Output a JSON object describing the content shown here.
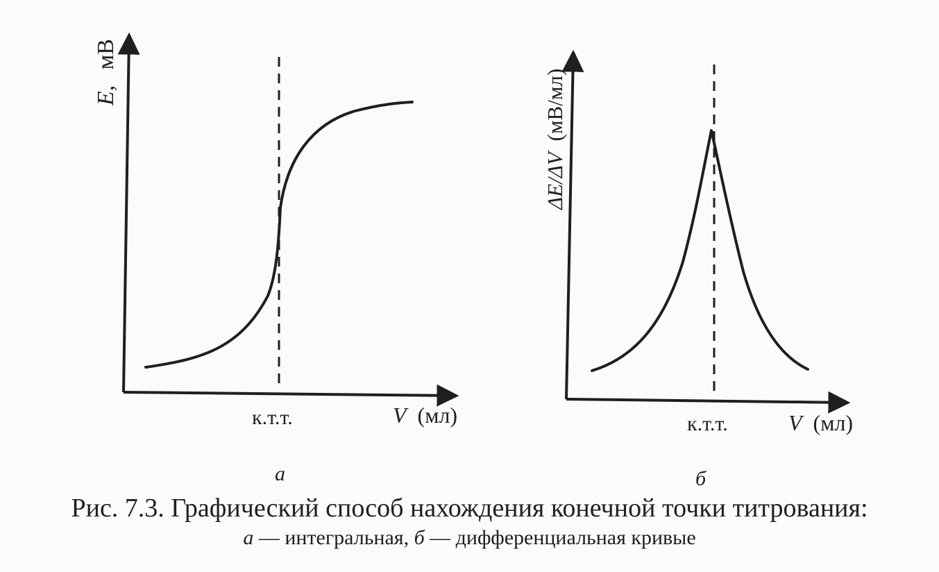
{
  "panel_a": {
    "y_axis_label_symbol": "E,",
    "y_axis_label_unit": "мВ",
    "x_axis_label_symbol": "V",
    "x_axis_label_unit": "(мл)",
    "endpoint_label": "к.т.т.",
    "panel_letter": "а"
  },
  "panel_b": {
    "y_axis_label_symbol": "ΔE/ΔV",
    "y_axis_label_unit": "(мВ/мл)",
    "x_axis_label_symbol": "V",
    "x_axis_label_unit": "(мл)",
    "endpoint_label": "к.т.т.",
    "panel_letter": "б"
  },
  "caption": {
    "line1": "Рис. 7.3. Графический способ нахождения конечной точки титрования:",
    "line2_a": "а",
    "line2_a_text": " — интегральная, ",
    "line2_b": "б",
    "line2_b_text": " — дифференциальная кривые"
  }
}
